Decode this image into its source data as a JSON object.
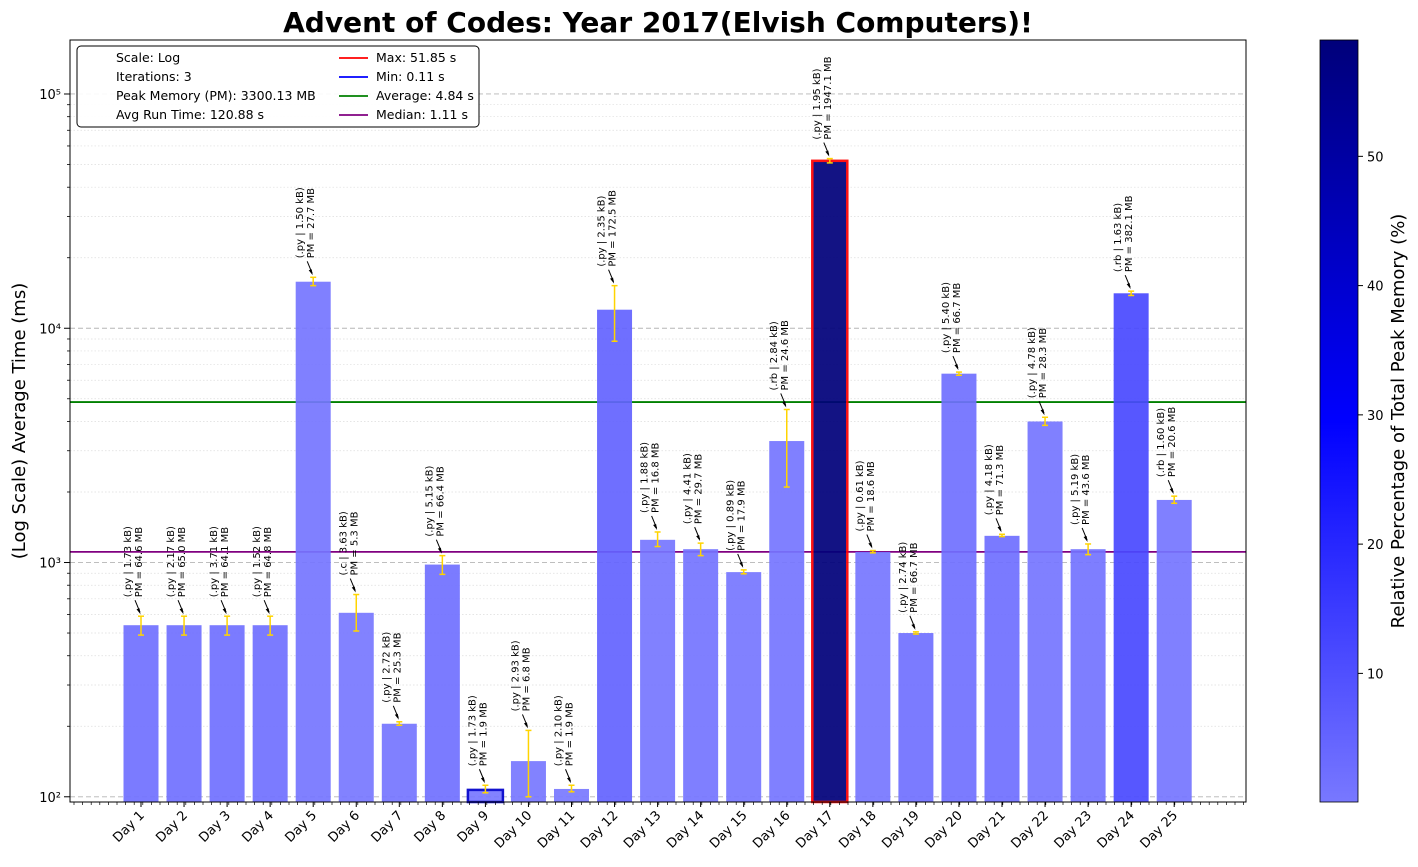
{
  "chart_data": {
    "type": "bar",
    "title": "Advent of Codes: Year 2017(Elvish Computers)!",
    "ylabel": "(Log Scale) Average Time (ms)",
    "colorbar_label": "Relative Percentage of Total Peak Memory (%)",
    "yscale": "log",
    "ylim": [
      95,
      170000
    ],
    "y_ticks": [
      {
        "value": 100,
        "label": "10²"
      },
      {
        "value": 1000,
        "label": "10³"
      },
      {
        "value": 10000,
        "label": "10⁴"
      },
      {
        "value": 100000,
        "label": "10⁵"
      }
    ],
    "colorbar_ticks": [
      "10",
      "20",
      "30",
      "40",
      "50"
    ],
    "colorbar_range": [
      0.05,
      59
    ],
    "grid": true,
    "legend_position": "top-left",
    "legend_info": [
      "Scale: Log",
      "Iterations: 3",
      "Peak Memory (PM): 3300.13 MB",
      "Avg Run Time: 120.88 s"
    ],
    "reference_lines": [
      {
        "label": "Max: 51.85 s",
        "value": 51850,
        "color": "#ff0000",
        "drawn": false
      },
      {
        "label": "Min: 0.11 s",
        "value": 110,
        "color": "#0000ff",
        "drawn": false
      },
      {
        "label": "Average: 4.84 s",
        "value": 4840,
        "color": "#008000",
        "drawn": true
      },
      {
        "label": "Median: 1.11 s",
        "value": 1110,
        "color": "#800080",
        "drawn": true
      }
    ],
    "categories": [
      "Day 1",
      "Day 2",
      "Day 3",
      "Day 4",
      "Day 5",
      "Day 6",
      "Day 7",
      "Day 8",
      "Day 9",
      "Day 10",
      "Day 11",
      "Day 12",
      "Day 13",
      "Day 14",
      "Day 15",
      "Day 16",
      "Day 17",
      "Day 18",
      "Day 19",
      "Day 20",
      "Day 21",
      "Day 22",
      "Day 23",
      "Day 24",
      "Day 25"
    ],
    "values": [
      540,
      540,
      540,
      540,
      15800,
      610,
      205,
      980,
      107,
      142,
      108,
      12000,
      1250,
      1140,
      910,
      3300,
      51850,
      1110,
      500,
      6400,
      1300,
      4000,
      1140,
      14100,
      1850
    ],
    "error_low": [
      490,
      490,
      490,
      490,
      15200,
      510,
      202,
      890,
      104,
      100,
      105,
      8800,
      1170,
      1070,
      895,
      2100,
      50800,
      1100,
      495,
      6300,
      1290,
      3850,
      1080,
      13800,
      1790
    ],
    "error_high": [
      590,
      590,
      590,
      590,
      16500,
      730,
      209,
      1070,
      112,
      192,
      112,
      15200,
      1350,
      1210,
      930,
      4500,
      53000,
      1125,
      506,
      6500,
      1320,
      4170,
      1200,
      14400,
      1920
    ],
    "memory_pct": [
      1.96,
      1.97,
      1.94,
      1.96,
      0.84,
      0.16,
      0.77,
      2.01,
      0.06,
      0.21,
      0.06,
      5.23,
      0.51,
      0.9,
      0.54,
      0.75,
      59.0,
      0.56,
      2.02,
      2.02,
      2.16,
      0.86,
      1.32,
      11.58,
      0.62
    ],
    "annotation_line1": [
      "(.py | 1.73 kB)",
      "(.py | 2.17 kB)",
      "(.py | 3.71 kB)",
      "(.py | 1.52 kB)",
      "(.py | 1.50 kB)",
      "(.c | 3.63 kB)",
      "(.py | 2.72 kB)",
      "(.py | 5.15 kB)",
      "(.py | 1.73 kB)",
      "(.py | 2.93 kB)",
      "(.py | 2.10 kB)",
      "(.py | 2.35 kB)",
      "(.py | 1.88 kB)",
      "(.py | 4.41 kB)",
      "(.py | 0.89 kB)",
      "(.rb | 2.84 kB)",
      "(.py | 1.95 kB)",
      "(.py | 0.61 kB)",
      "(.py | 2.74 kB)",
      "(.py | 5.40 kB)",
      "(.py | 4.18 kB)",
      "(.py | 4.78 kB)",
      "(.py | 5.19 kB)",
      "(.rb | 1.63 kB)",
      "(.rb | 1.60 kB)"
    ],
    "annotation_line2": [
      "PM = 64.6 MB",
      "PM = 65.0 MB",
      "PM = 64.1 MB",
      "PM = 64.8 MB",
      "PM = 27.7 MB",
      "PM = 5.3 MB",
      "PM = 25.3 MB",
      "PM = 66.4 MB",
      "PM = 1.9 MB",
      "PM = 6.8 MB",
      "PM = 1.9 MB",
      "PM = 172.5 MB",
      "PM = 16.8 MB",
      "PM = 29.7 MB",
      "PM = 17.9 MB",
      "PM = 24.6 MB",
      "PM = 1947.1 MB",
      "PM = 18.6 MB",
      "PM = 66.7 MB",
      "PM = 66.7 MB",
      "PM = 71.3 MB",
      "PM = 28.3 MB",
      "PM = 43.6 MB",
      "PM = 382.1 MB",
      "PM = 20.6 MB"
    ],
    "highlight_max_index": 16,
    "highlight_min_index": 8,
    "colors": {
      "bar_light": "#7878ff",
      "bar_mid": "#0000ff",
      "bar_dark": "#00007a",
      "error_bar": "#ffd400",
      "max_edge": "#ff0000",
      "min_edge": "#0000cc"
    }
  }
}
